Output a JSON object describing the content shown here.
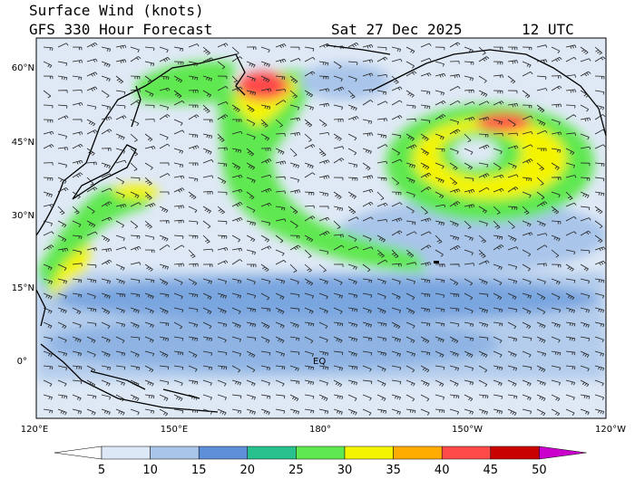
{
  "header": {
    "title": "Surface Wind (knots)",
    "subtitle": "GFS 330 Hour Forecast",
    "date": "Sat 27 Dec 2025",
    "time": "12 UTC"
  },
  "map": {
    "lat_labels": [
      "60°N",
      "45°N",
      "30°N",
      "15°N",
      "0°"
    ],
    "lon_labels": [
      "120°E",
      "150°E",
      "180°",
      "150°W",
      "120°W"
    ],
    "markers": [
      "EQ"
    ]
  },
  "colorbar": {
    "levels": [
      5,
      10,
      15,
      20,
      25,
      30,
      35,
      40,
      45,
      50
    ],
    "colors": [
      "#ffffff",
      "#dce8f5",
      "#a9c5ea",
      "#5e8fd8",
      "#28c08c",
      "#5fe84f",
      "#f4f400",
      "#ffab00",
      "#ff4a4a",
      "#c80000",
      "#cc00cc"
    ]
  }
}
